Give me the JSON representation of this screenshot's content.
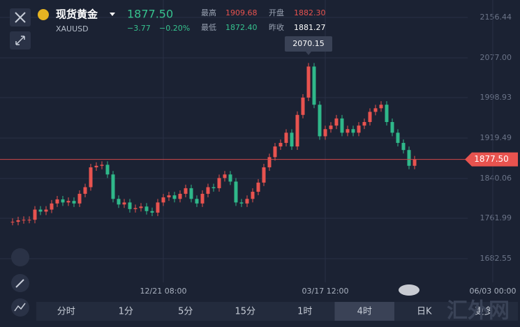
{
  "header": {
    "name": "现货黄金",
    "symbol": "XAUUSD",
    "price": "1877.50",
    "change": "−3.77",
    "change_pct": "−0.20%",
    "high_label": "最高",
    "high": "1909.68",
    "open_label": "开盘",
    "open": "1882.30",
    "low_label": "最低",
    "low": "1872.40",
    "prev_close_label": "昨收",
    "prev_close": "1881.27"
  },
  "toolbar": {
    "tabs": [
      "分时",
      "1分",
      "5分",
      "15分",
      "1时",
      "4时",
      "日K",
      "更多"
    ],
    "active": 5
  },
  "watermark": "汇外网",
  "chart_data": {
    "type": "candlestick",
    "categories": [
      null,
      null,
      null,
      null,
      null,
      null,
      null,
      null,
      null,
      null,
      null,
      null,
      null,
      null,
      null,
      null,
      null,
      null,
      null,
      null,
      null,
      null,
      null,
      null,
      null,
      null,
      null,
      "12/21 08:00",
      null,
      null,
      null,
      null,
      null,
      null,
      null,
      null,
      null,
      null,
      null,
      null,
      null,
      null,
      null,
      null,
      null,
      null,
      null,
      null,
      null,
      null,
      null,
      null,
      null,
      null,
      null,
      null,
      "03/17 12:00",
      null,
      null,
      null,
      null,
      null,
      null,
      null,
      null,
      null,
      null,
      null,
      null,
      null,
      null,
      null,
      null,
      null,
      null,
      null,
      null,
      null,
      null,
      null,
      null,
      null,
      null,
      null,
      null,
      null,
      "06/03 00:00"
    ],
    "series": [
      {
        "name": "XAUUSD",
        "up_color": "#e8534f",
        "down_color": "#2fb88a",
        "values": [
          1755,
          1758,
          1759,
          1759,
          1779,
          1775,
          1779,
          1791,
          1799,
          1793,
          1796,
          1791,
          1810,
          1823,
          1862,
          1865,
          1867,
          1848,
          1800,
          1789,
          1793,
          1780,
          1782,
          1785,
          1776,
          1773,
          1793,
          1803,
          1807,
          1800,
          1810,
          1821,
          1800,
          1791,
          1810,
          1823,
          1821,
          1841,
          1848,
          1834,
          1793,
          1791,
          1800,
          1814,
          1832,
          1862,
          1882,
          1903,
          1910,
          1930,
          1903,
          1965,
          1999,
          2060,
          1985,
          1923,
          1937,
          1944,
          1958,
          1930,
          1937,
          1930,
          1944,
          1951,
          1971,
          1978,
          1985,
          1951,
          1930,
          1910,
          1896,
          1865,
          1877.5,
          null,
          null,
          null,
          null,
          null,
          null,
          null,
          null,
          null,
          null,
          null,
          null,
          null,
          null
        ]
      }
    ],
    "ylim": [
      1636,
      2190.7
    ],
    "yticks": [
      {
        "value": 1682.55,
        "label": "1682.55"
      },
      {
        "value": 1761.99,
        "label": "1761.99"
      },
      {
        "value": 1840.06,
        "label": "1840.06"
      },
      {
        "value": 1919.49,
        "label": "1919.49"
      },
      {
        "value": 1998.93,
        "label": "1998.93"
      },
      {
        "value": 2077,
        "label": "2077.00"
      },
      {
        "value": 2156.44,
        "label": "2156.44"
      }
    ],
    "last_price": {
      "value": 1877.5,
      "label": "1877.50"
    },
    "peak": {
      "value": 2070.15,
      "label": "2070.15",
      "index": 53
    },
    "grid": true
  }
}
